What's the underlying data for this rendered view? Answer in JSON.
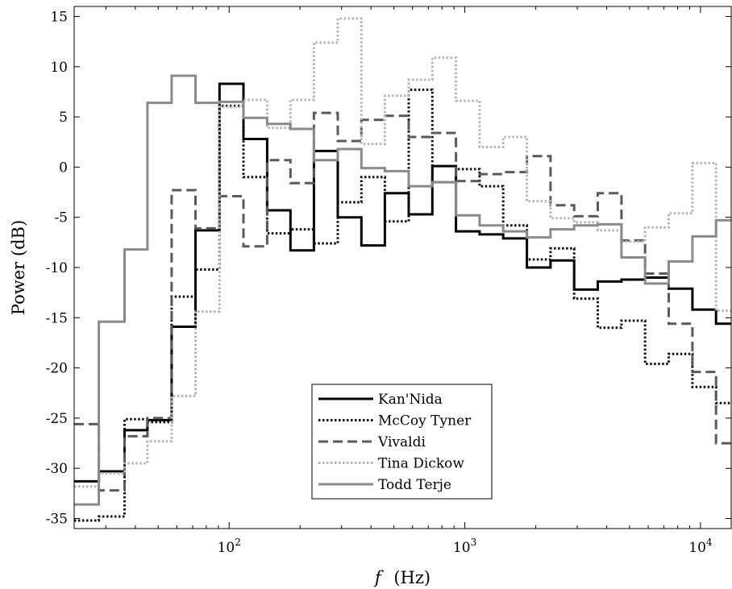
{
  "chart_data": {
    "type": "line",
    "step": true,
    "xscale": "log",
    "xlim": [
      22,
      13500
    ],
    "ylim": [
      -36,
      16
    ],
    "xlabel_var": "f",
    "xlabel_unit": "(Hz)",
    "ylabel": "Power (dB)",
    "x_ticks": [
      {
        "value": 100,
        "label_base": "10",
        "label_exp": "2"
      },
      {
        "value": 1000,
        "label_base": "10",
        "label_exp": "3"
      },
      {
        "value": 10000,
        "label_base": "10",
        "label_exp": "4"
      }
    ],
    "y_ticks": [
      {
        "value": 15,
        "label": "15"
      },
      {
        "value": 10,
        "label": "10"
      },
      {
        "value": 5,
        "label": "5"
      },
      {
        "value": 0,
        "label": "0"
      },
      {
        "value": -5,
        "label": "-5"
      },
      {
        "value": -10,
        "label": "-10"
      },
      {
        "value": -15,
        "label": "-15"
      },
      {
        "value": -20,
        "label": "-20"
      },
      {
        "value": -25,
        "label": "-25"
      },
      {
        "value": -30,
        "label": "-30"
      },
      {
        "value": -35,
        "label": "-35"
      }
    ],
    "grid": false,
    "legend_position": "bottom-center",
    "bin_edges": [
      22,
      28,
      36,
      45,
      57,
      72,
      91,
      115,
      145,
      182,
      229,
      289,
      364,
      458,
      578,
      728,
      917,
      1155,
      1455,
      1834,
      2310,
      2911,
      3667,
      4620,
      5821,
      7333,
      9239,
      11640,
      13500
    ],
    "series": [
      {
        "name": "Kan'Nida",
        "color": "#000000",
        "dash": "solid",
        "width": 3,
        "values": [
          -31.3,
          -30.3,
          -26.2,
          -25.2,
          -15.9,
          -6.3,
          8.3,
          2.8,
          -4.3,
          -8.3,
          1.6,
          -5.0,
          -7.8,
          -2.6,
          -4.7,
          0.1,
          -6.4,
          -6.7,
          -7.1,
          -10.0,
          -9.3,
          -12.2,
          -11.4,
          -11.2,
          -11.0,
          -12.1,
          -14.2,
          -15.6
        ]
      },
      {
        "name": "McCoy Tyner",
        "color": "#111111",
        "dash": "dotted",
        "width": 3,
        "values": [
          -35.2,
          -34.8,
          -25.1,
          -25.4,
          -12.9,
          -10.2,
          6.1,
          -1.0,
          -6.6,
          -6.2,
          -7.6,
          -3.5,
          -1.0,
          -5.4,
          7.7,
          -1.5,
          -0.2,
          -1.9,
          -5.8,
          -9.2,
          -8.1,
          -13.1,
          -16.0,
          -15.3,
          -19.6,
          -18.6,
          -21.9,
          -23.5
        ]
      },
      {
        "name": "Vivaldi",
        "color": "#5a5a5a",
        "dash": "dashed",
        "width": 3,
        "values": [
          -25.6,
          -32.2,
          -26.8,
          -25.0,
          -2.3,
          -6.1,
          -2.9,
          -7.9,
          0.7,
          -1.6,
          5.4,
          2.6,
          4.7,
          5.1,
          3.0,
          3.4,
          -1.4,
          -0.7,
          -0.5,
          1.1,
          -3.8,
          -4.9,
          -2.6,
          -7.3,
          -10.6,
          -15.6,
          -20.4,
          -27.5
        ]
      },
      {
        "name": "Tina Dickow",
        "color": "#b4b4b4",
        "dash": "dotted",
        "width": 3,
        "values": [
          -31.8,
          -30.5,
          -29.5,
          -27.3,
          -22.8,
          -14.4,
          6.0,
          6.7,
          3.9,
          6.7,
          12.4,
          14.8,
          2.3,
          7.1,
          8.7,
          10.9,
          6.6,
          2.0,
          3.0,
          -3.4,
          -5.1,
          -5.5,
          -6.3,
          -7.4,
          -6.0,
          -4.6,
          0.4,
          -14.3
        ]
      },
      {
        "name": "Todd Terje",
        "color": "#8a8a8a",
        "dash": "solid",
        "width": 3,
        "values": [
          -33.6,
          -15.4,
          -8.2,
          6.4,
          9.1,
          6.4,
          6.5,
          4.9,
          4.3,
          3.8,
          0.7,
          1.8,
          -0.1,
          -0.4,
          -1.9,
          -1.5,
          -4.8,
          -5.8,
          -6.4,
          -7.0,
          -6.2,
          -5.8,
          -5.7,
          -9.0,
          -11.6,
          -9.4,
          -6.9,
          -5.3
        ]
      }
    ]
  }
}
